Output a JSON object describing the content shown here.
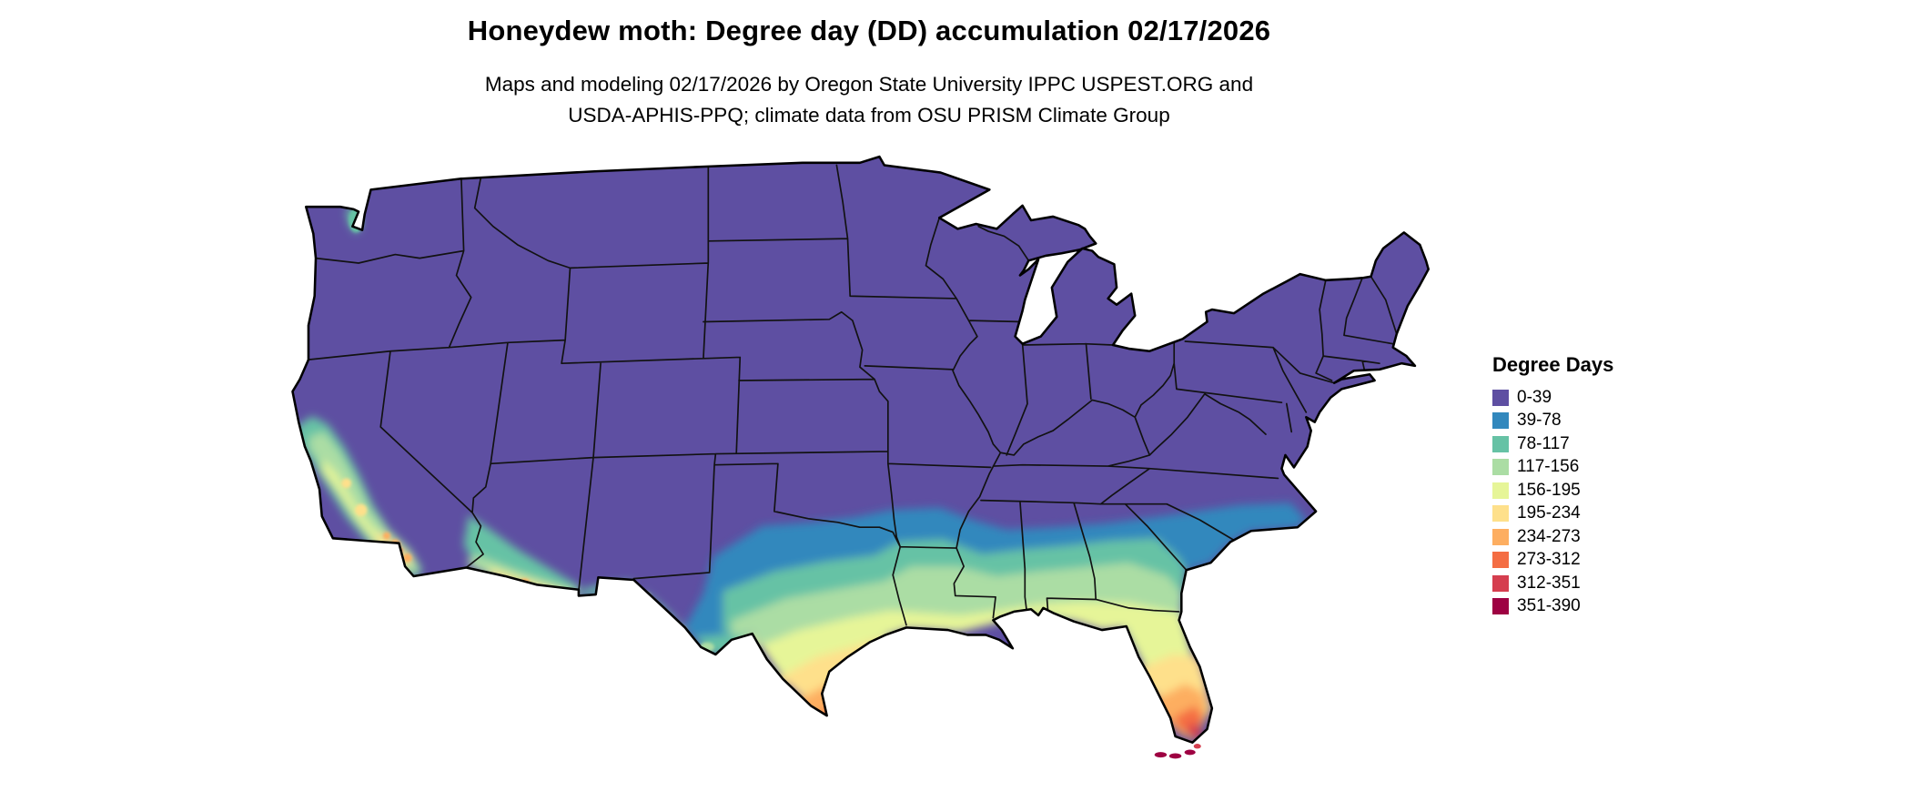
{
  "title": "Honeydew moth: Degree day (DD) accumulation 02/17/2026",
  "subtitle": {
    "line1": "Maps and modeling 02/17/2026 by Oregon State University IPPC USPEST.ORG and",
    "line2": "USDA-APHIS-PPQ; climate data from OSU PRISM Climate Group"
  },
  "legend": {
    "title": "Degree Days",
    "items": [
      {
        "range": "0-39",
        "color": "#5e4fa2"
      },
      {
        "range": "39-78",
        "color": "#3288bd"
      },
      {
        "range": "78-117",
        "color": "#66c2a5"
      },
      {
        "range": "117-156",
        "color": "#abdda4"
      },
      {
        "range": "156-195",
        "color": "#e6f598"
      },
      {
        "range": "195-234",
        "color": "#fee08b"
      },
      {
        "range": "234-273",
        "color": "#fdae61"
      },
      {
        "range": "273-312",
        "color": "#f46d43"
      },
      {
        "range": "312-351",
        "color": "#d53e4f"
      },
      {
        "range": "351-390",
        "color": "#9e0142"
      }
    ]
  },
  "map": {
    "region": "Contiguous United States with state boundaries",
    "unit": "accumulated degree days (DD)",
    "pattern": {
      "0-39": "most of the northern, central and eastern interior US",
      "39-78": "southern Oklahoma, north-central Texas, southern Arkansas, central Mississippi, Alabama and Georgia, coastal Carolinas, coastal California, Puget Sound",
      "78-156": "central and coastal Texas, Louisiana, Gulf Coast, north Florida, California Central Valley, southwestern Arizona",
      "156-273": "deep south Texas and Rio Grande valley, central Florida, southern California coast, Phoenix-Yuma Arizona",
      "273-390": "southernmost Texas tip, south Florida, Miami area and the Florida Keys"
    }
  }
}
